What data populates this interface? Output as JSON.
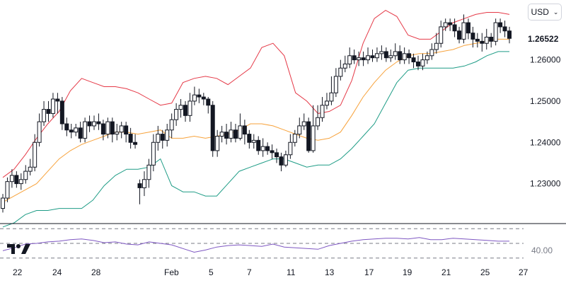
{
  "header": {
    "currency_label": "USD"
  },
  "last_price_label": "1.26522",
  "colors": {
    "upper_band": "#e53947",
    "middle_band": "#f7a23b",
    "lower_band": "#1e9c86",
    "candle": "#131722",
    "rsi": "#7e57c2",
    "grid_dash": "#787b86",
    "axis_text": "#131722"
  },
  "chart_data": {
    "type": "candlestick",
    "y_ticks": [
      "1.26000",
      "1.25000",
      "1.24000",
      "1.23000"
    ],
    "y_tick_values": [
      1.26,
      1.25,
      1.24,
      1.23
    ],
    "ylim": [
      1.2205,
      1.2745
    ],
    "x_ticks": [
      "22",
      "24",
      "28",
      "Feb",
      "5",
      "7",
      "11",
      "13",
      "17",
      "19",
      "21",
      "25",
      "27"
    ],
    "last_price": 1.26522,
    "series": [
      {
        "role": "upper-band",
        "values": [
          1.2315,
          1.2335,
          1.237,
          1.241,
          1.2445,
          1.2475,
          1.2525,
          1.2555,
          1.2545,
          1.2535,
          1.2535,
          1.253,
          1.252,
          1.2505,
          1.249,
          1.2495,
          1.2545,
          1.2555,
          1.256,
          1.2555,
          1.254,
          1.256,
          1.258,
          1.263,
          1.264,
          1.261,
          1.252,
          1.25,
          1.247,
          1.2475,
          1.249,
          1.255,
          1.264,
          1.27,
          1.272,
          1.2705,
          1.266,
          1.265,
          1.265,
          1.267,
          1.269,
          1.27,
          1.271,
          1.2715,
          1.2715,
          1.271
        ]
      },
      {
        "role": "middle-band",
        "values": [
          1.2255,
          1.227,
          1.2285,
          1.23,
          1.233,
          1.236,
          1.238,
          1.2395,
          1.2405,
          1.2415,
          1.2425,
          1.2425,
          1.242,
          1.2425,
          1.243,
          1.241,
          1.241,
          1.2415,
          1.241,
          1.2415,
          1.242,
          1.243,
          1.2445,
          1.2445,
          1.244,
          1.243,
          1.242,
          1.241,
          1.2405,
          1.241,
          1.2425,
          1.2465,
          1.251,
          1.2545,
          1.2575,
          1.2595,
          1.261,
          1.2615,
          1.2615,
          1.262,
          1.2625,
          1.2635,
          1.264,
          1.2645,
          1.265,
          1.265
        ]
      },
      {
        "role": "lower-band",
        "values": [
          1.2195,
          1.2205,
          1.2225,
          1.2235,
          1.2235,
          1.224,
          1.224,
          1.224,
          1.226,
          1.2295,
          1.232,
          1.2335,
          1.2335,
          1.234,
          1.236,
          1.2295,
          1.228,
          1.228,
          1.227,
          1.227,
          1.23,
          1.233,
          1.234,
          1.235,
          1.236,
          1.236,
          1.235,
          1.234,
          1.2345,
          1.2345,
          1.236,
          1.2385,
          1.2415,
          1.2445,
          1.2495,
          1.2545,
          1.2575,
          1.258,
          1.258,
          1.258,
          1.258,
          1.2585,
          1.2595,
          1.261,
          1.262,
          1.262
        ]
      },
      {
        "role": "rsi",
        "values": [
          40,
          44,
          49,
          50,
          52,
          53,
          55,
          56,
          54,
          51,
          52,
          49,
          48,
          52,
          50,
          48,
          43,
          38,
          41,
          45,
          47,
          48,
          47,
          46,
          49,
          45,
          44,
          43,
          42,
          47,
          50,
          53,
          55,
          56,
          57,
          57,
          56,
          58,
          55,
          55,
          57,
          56,
          55,
          54,
          53,
          53
        ]
      }
    ],
    "candles": [
      [
        1.224,
        1.2265,
        1.223,
        1.2275
      ],
      [
        1.2265,
        1.2305,
        1.2255,
        1.2315
      ],
      [
        1.2305,
        1.232,
        1.229,
        1.2335
      ],
      [
        1.232,
        1.23,
        1.229,
        1.233
      ],
      [
        1.23,
        1.231,
        1.2285,
        1.2325
      ],
      [
        1.231,
        1.233,
        1.23,
        1.2345
      ],
      [
        1.233,
        1.234,
        1.232,
        1.236
      ],
      [
        1.234,
        1.24,
        1.233,
        1.242
      ],
      [
        1.24,
        1.245,
        1.239,
        1.247
      ],
      [
        1.245,
        1.248,
        1.244,
        1.25
      ],
      [
        1.248,
        1.247,
        1.245,
        1.25
      ],
      [
        1.247,
        1.2505,
        1.246,
        1.252
      ],
      [
        1.2505,
        1.25,
        1.247,
        1.252
      ],
      [
        1.25,
        1.2445,
        1.243,
        1.251
      ],
      [
        1.2445,
        1.243,
        1.2415,
        1.246
      ],
      [
        1.243,
        1.2425,
        1.241,
        1.2445
      ],
      [
        1.2425,
        1.2435,
        1.2415,
        1.2445
      ],
      [
        1.2435,
        1.241,
        1.24,
        1.245
      ],
      [
        1.241,
        1.245,
        1.24,
        1.246
      ],
      [
        1.245,
        1.244,
        1.2425,
        1.2465
      ],
      [
        1.244,
        1.245,
        1.243,
        1.2465
      ],
      [
        1.245,
        1.2445,
        1.243,
        1.247
      ],
      [
        1.2445,
        1.242,
        1.2405,
        1.2455
      ],
      [
        1.242,
        1.245,
        1.241,
        1.246
      ],
      [
        1.245,
        1.242,
        1.24,
        1.246
      ],
      [
        1.242,
        1.2425,
        1.2405,
        1.2445
      ],
      [
        1.2425,
        1.244,
        1.241,
        1.245
      ],
      [
        1.244,
        1.242,
        1.24,
        1.245
      ],
      [
        1.242,
        1.24,
        1.2385,
        1.2435
      ],
      [
        1.24,
        1.2395,
        1.2385,
        1.242
      ],
      [
        1.23,
        1.229,
        1.225,
        1.231
      ],
      [
        1.229,
        1.231,
        1.227,
        1.233
      ],
      [
        1.231,
        1.2345,
        1.229,
        1.236
      ],
      [
        1.2345,
        1.24,
        1.233,
        1.242
      ],
      [
        1.24,
        1.242,
        1.238,
        1.244
      ],
      [
        1.242,
        1.2405,
        1.2385,
        1.243
      ],
      [
        1.2405,
        1.243,
        1.239,
        1.2445
      ],
      [
        1.243,
        1.2455,
        1.241,
        1.247
      ],
      [
        1.2455,
        1.248,
        1.244,
        1.2495
      ],
      [
        1.248,
        1.249,
        1.246,
        1.2505
      ],
      [
        1.249,
        1.2465,
        1.245,
        1.25
      ],
      [
        1.2465,
        1.25,
        1.245,
        1.252
      ],
      [
        1.25,
        1.2515,
        1.249,
        1.2535
      ],
      [
        1.2515,
        1.251,
        1.2495,
        1.253
      ],
      [
        1.251,
        1.2505,
        1.249,
        1.252
      ],
      [
        1.2505,
        1.249,
        1.247,
        1.251
      ],
      [
        1.249,
        1.238,
        1.2365,
        1.25
      ],
      [
        1.238,
        1.2415,
        1.2365,
        1.243
      ],
      [
        1.2415,
        1.2425,
        1.24,
        1.244
      ],
      [
        1.2425,
        1.241,
        1.2395,
        1.2445
      ],
      [
        1.241,
        1.243,
        1.24,
        1.245
      ],
      [
        1.243,
        1.241,
        1.24,
        1.2445
      ],
      [
        1.241,
        1.244,
        1.2405,
        1.247
      ],
      [
        1.244,
        1.242,
        1.2395,
        1.2455
      ],
      [
        1.242,
        1.24,
        1.2385,
        1.243
      ],
      [
        1.24,
        1.2405,
        1.2385,
        1.242
      ],
      [
        1.2405,
        1.238,
        1.237,
        1.2415
      ],
      [
        1.238,
        1.239,
        1.2365,
        1.241
      ],
      [
        1.239,
        1.238,
        1.237,
        1.24
      ],
      [
        1.238,
        1.2375,
        1.236,
        1.2395
      ],
      [
        1.2375,
        1.2365,
        1.235,
        1.2385
      ],
      [
        1.2365,
        1.2345,
        1.233,
        1.2375
      ],
      [
        1.2345,
        1.237,
        1.234,
        1.238
      ],
      [
        1.237,
        1.24,
        1.236,
        1.242
      ],
      [
        1.24,
        1.242,
        1.239,
        1.243
      ],
      [
        1.242,
        1.244,
        1.241,
        1.246
      ],
      [
        1.244,
        1.245,
        1.243,
        1.247
      ],
      [
        1.245,
        1.238,
        1.2375,
        1.246
      ],
      [
        1.238,
        1.244,
        1.2375,
        1.249
      ],
      [
        1.244,
        1.246,
        1.243,
        1.249
      ],
      [
        1.246,
        1.249,
        1.245,
        1.251
      ],
      [
        1.249,
        1.25,
        1.248,
        1.252
      ],
      [
        1.25,
        1.252,
        1.249,
        1.256
      ],
      [
        1.252,
        1.256,
        1.251,
        1.258
      ],
      [
        1.256,
        1.258,
        1.255,
        1.26
      ],
      [
        1.258,
        1.259,
        1.257,
        1.261
      ],
      [
        1.259,
        1.261,
        1.258,
        1.263
      ],
      [
        1.261,
        1.26,
        1.259,
        1.2625
      ],
      [
        1.26,
        1.2605,
        1.2585,
        1.262
      ],
      [
        1.2605,
        1.26,
        1.2585,
        1.262
      ],
      [
        1.26,
        1.261,
        1.259,
        1.263
      ],
      [
        1.261,
        1.2605,
        1.2595,
        1.2625
      ],
      [
        1.2605,
        1.2615,
        1.2595,
        1.263
      ],
      [
        1.2615,
        1.262,
        1.26,
        1.2635
      ],
      [
        1.262,
        1.2605,
        1.2595,
        1.263
      ],
      [
        1.2605,
        1.261,
        1.2595,
        1.2625
      ],
      [
        1.261,
        1.262,
        1.26,
        1.264
      ],
      [
        1.262,
        1.26,
        1.259,
        1.2635
      ],
      [
        1.26,
        1.2615,
        1.259,
        1.263
      ],
      [
        1.2615,
        1.2605,
        1.259,
        1.2625
      ],
      [
        1.2605,
        1.2595,
        1.258,
        1.2615
      ],
      [
        1.2595,
        1.2585,
        1.2575,
        1.261
      ],
      [
        1.2585,
        1.26,
        1.2575,
        1.2615
      ],
      [
        1.26,
        1.261,
        1.259,
        1.262
      ],
      [
        1.261,
        1.2625,
        1.26,
        1.264
      ],
      [
        1.2625,
        1.264,
        1.2615,
        1.2665
      ],
      [
        1.264,
        1.268,
        1.263,
        1.2695
      ],
      [
        1.268,
        1.269,
        1.267,
        1.27
      ],
      [
        1.269,
        1.2685,
        1.267,
        1.27
      ],
      [
        1.2685,
        1.267,
        1.2655,
        1.27
      ],
      [
        1.267,
        1.265,
        1.264,
        1.268
      ],
      [
        1.265,
        1.269,
        1.264,
        1.271
      ],
      [
        1.269,
        1.2665,
        1.265,
        1.27
      ],
      [
        1.2665,
        1.265,
        1.263,
        1.268
      ],
      [
        1.265,
        1.2645,
        1.263,
        1.2665
      ],
      [
        1.2645,
        1.264,
        1.262,
        1.2665
      ],
      [
        1.264,
        1.2655,
        1.2625,
        1.2675
      ],
      [
        1.2655,
        1.2645,
        1.263,
        1.2665
      ],
      [
        1.2645,
        1.269,
        1.2635,
        1.27
      ],
      [
        1.269,
        1.268,
        1.2665,
        1.27
      ],
      [
        1.268,
        1.267,
        1.2655,
        1.2695
      ],
      [
        1.267,
        1.2652,
        1.264,
        1.268
      ]
    ],
    "rsi": {
      "level_label": "40.00",
      "ylim": [
        25,
        75
      ],
      "levels": [
        70,
        50,
        30
      ]
    }
  }
}
